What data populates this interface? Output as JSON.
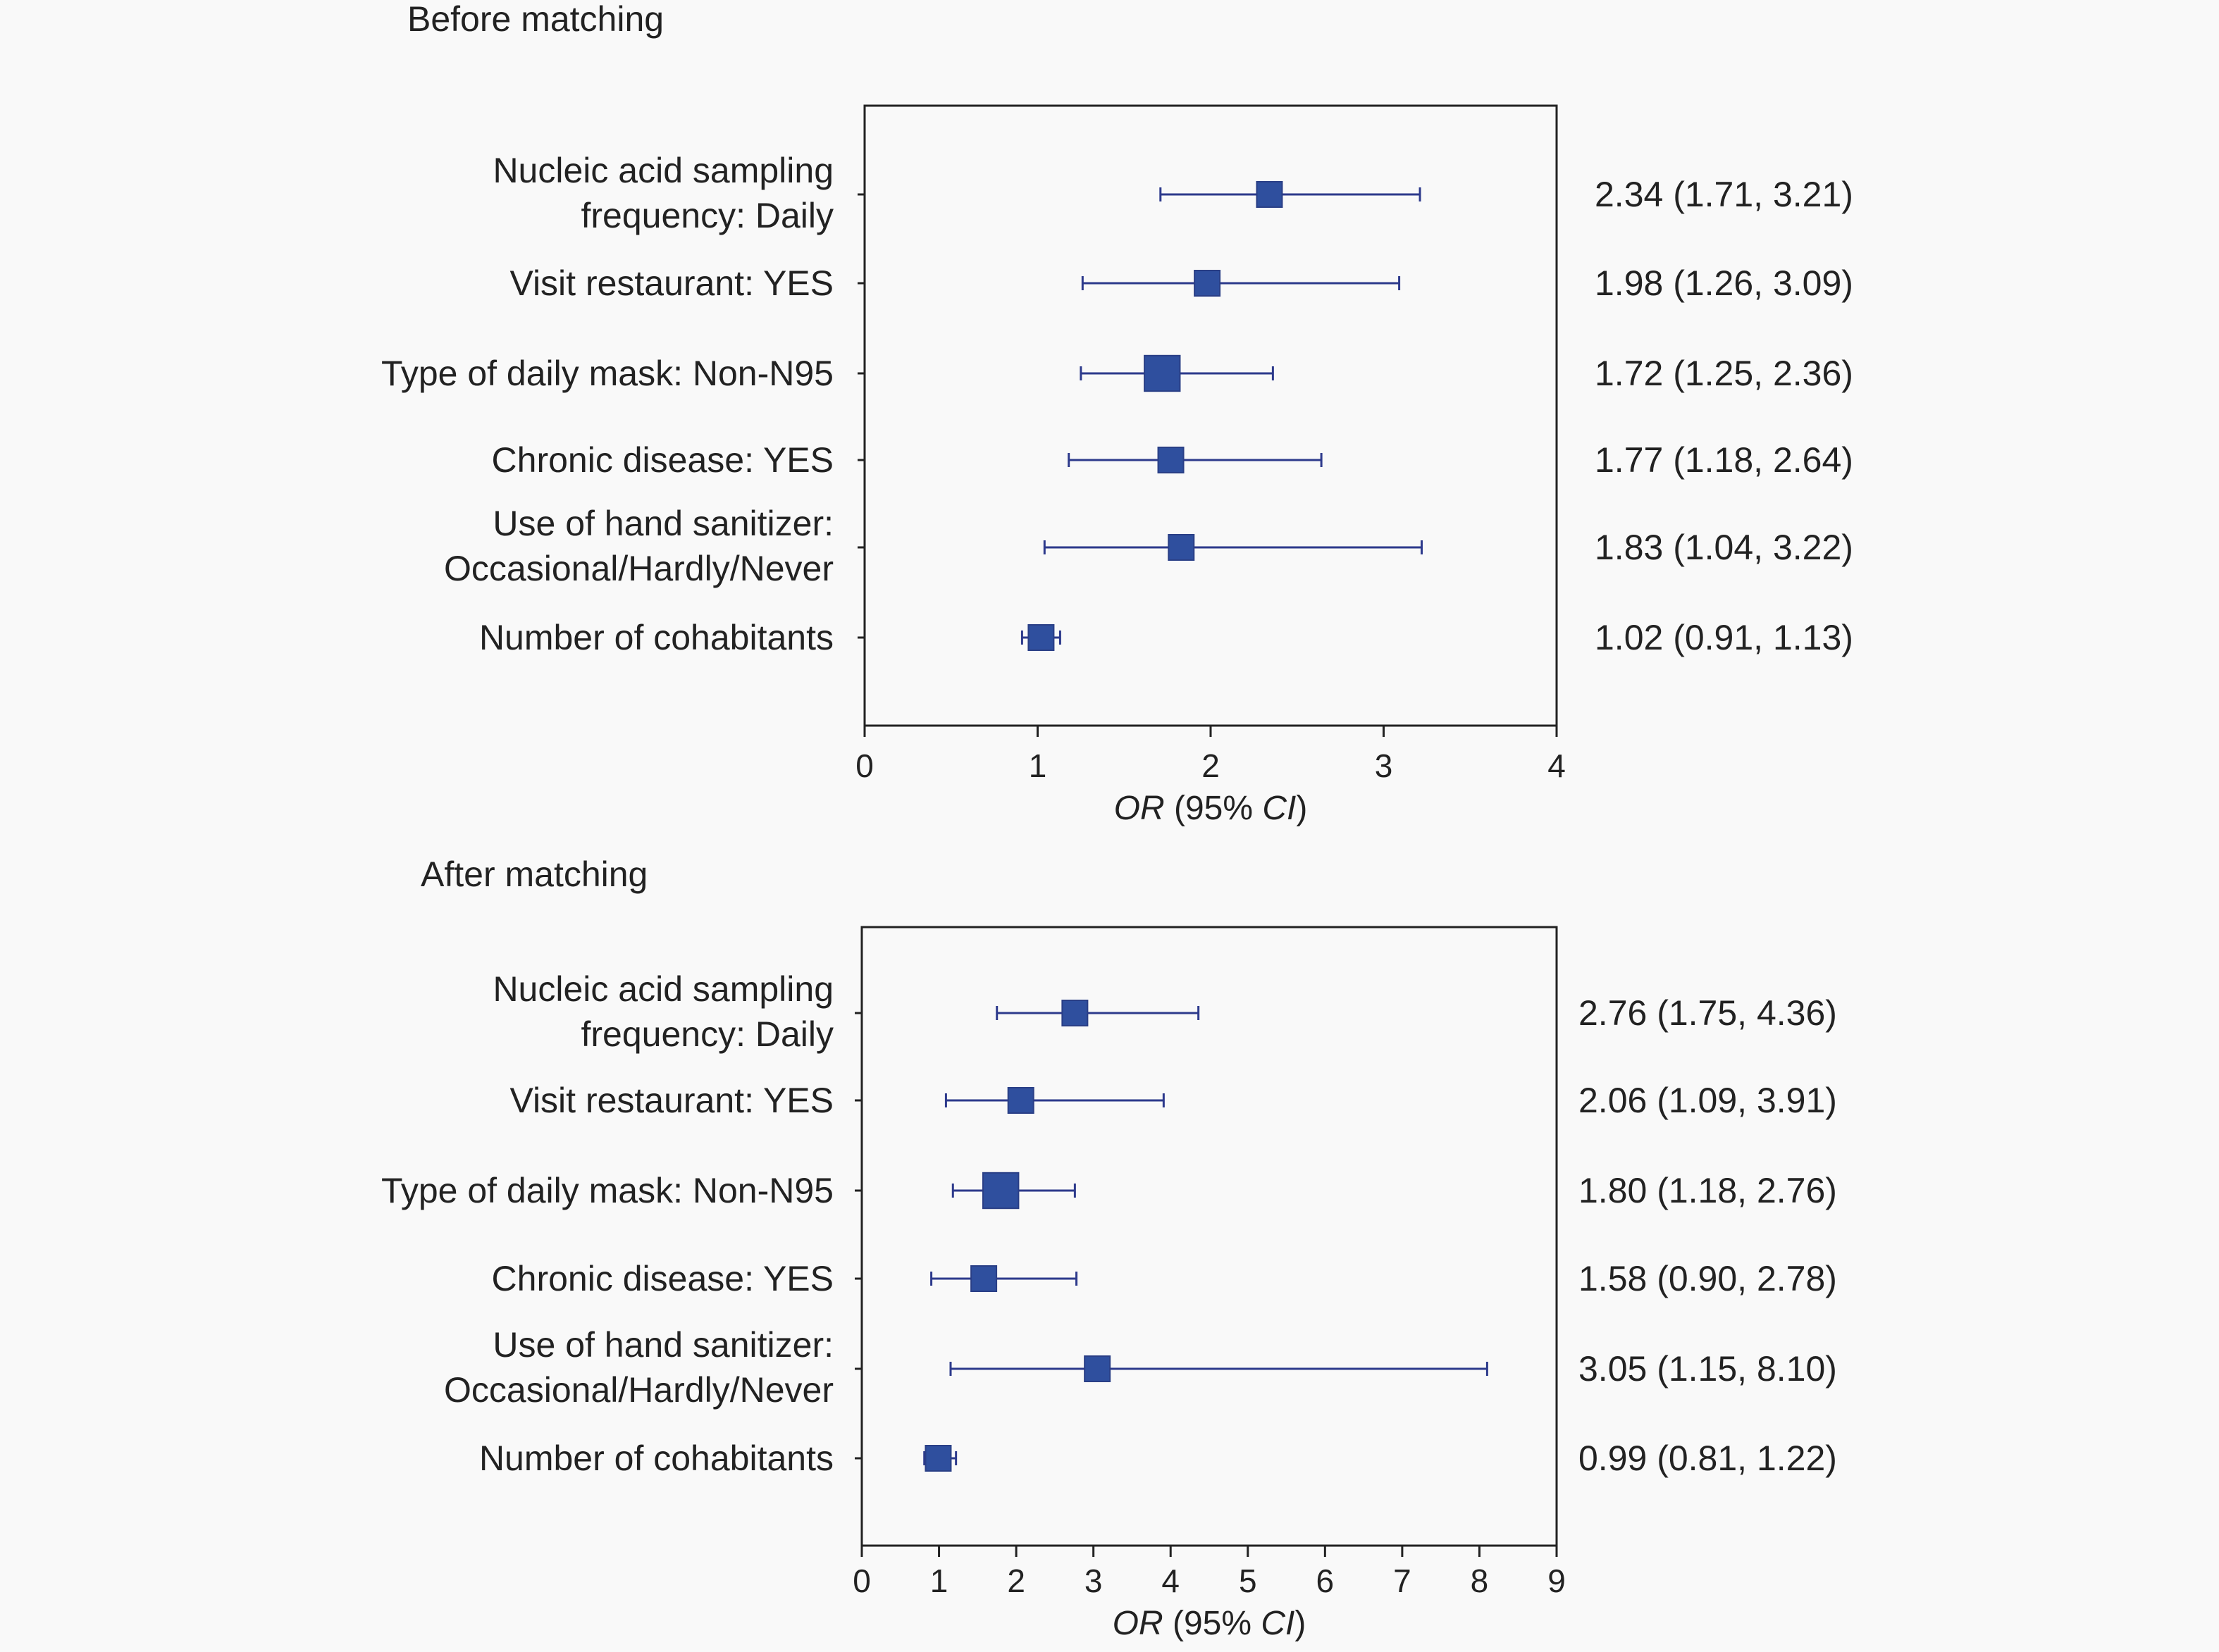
{
  "chart_data": [
    {
      "type": "forest",
      "title": "Before matching",
      "xlabel_parts": [
        {
          "text": "OR",
          "italic": true
        },
        {
          "text": " (95% ",
          "italic": false
        },
        {
          "text": "CI",
          "italic": true
        },
        {
          "text": ")",
          "italic": false
        }
      ],
      "xlim": [
        0,
        4
      ],
      "xticks": [
        0,
        1,
        2,
        3,
        4
      ],
      "rows": [
        {
          "label": [
            "Nucleic acid sampling",
            "frequency: Daily"
          ],
          "or": 2.34,
          "lo": 1.71,
          "hi": 3.21,
          "text": "2.34 (1.71, 3.21)",
          "weight": 1.0
        },
        {
          "label": [
            "Visit restaurant: YES"
          ],
          "or": 1.98,
          "lo": 1.26,
          "hi": 3.09,
          "text": "1.98 (1.26, 3.09)",
          "weight": 1.0
        },
        {
          "label": [
            "Type of daily mask: Non-N95"
          ],
          "or": 1.72,
          "lo": 1.25,
          "hi": 2.36,
          "text": "1.72 (1.25, 2.36)",
          "weight": 1.4
        },
        {
          "label": [
            "Chronic disease: YES"
          ],
          "or": 1.77,
          "lo": 1.18,
          "hi": 2.64,
          "text": "1.77 (1.18, 2.64)",
          "weight": 1.0
        },
        {
          "label": [
            "Use of hand sanitizer:",
            "Occasional/Hardly/Never"
          ],
          "or": 1.83,
          "lo": 1.04,
          "hi": 3.22,
          "text": "1.83 (1.04, 3.22)",
          "weight": 1.0
        },
        {
          "label": [
            "Number of cohabitants"
          ],
          "or": 1.02,
          "lo": 0.91,
          "hi": 1.13,
          "text": "1.02 (0.91, 1.13)",
          "weight": 1.0
        }
      ],
      "colors": {
        "marker": "#2f4f9e",
        "ci": "#2d3a8c"
      }
    },
    {
      "type": "forest",
      "title": "After matching",
      "xlabel_parts": [
        {
          "text": "OR",
          "italic": true
        },
        {
          "text": " (95% ",
          "italic": false
        },
        {
          "text": "CI",
          "italic": true
        },
        {
          "text": ")",
          "italic": false
        }
      ],
      "xlim": [
        0,
        9
      ],
      "xticks": [
        0,
        1,
        2,
        3,
        4,
        5,
        6,
        7,
        8,
        9
      ],
      "rows": [
        {
          "label": [
            "Nucleic acid sampling",
            "frequency: Daily"
          ],
          "or": 2.76,
          "lo": 1.75,
          "hi": 4.36,
          "text": "2.76 (1.75, 4.36)",
          "weight": 1.0
        },
        {
          "label": [
            "Visit restaurant: YES"
          ],
          "or": 2.06,
          "lo": 1.09,
          "hi": 3.91,
          "text": "2.06 (1.09, 3.91)",
          "weight": 1.0
        },
        {
          "label": [
            "Type of daily mask: Non-N95"
          ],
          "or": 1.8,
          "lo": 1.18,
          "hi": 2.76,
          "text": "1.80 (1.18, 2.76)",
          "weight": 1.4
        },
        {
          "label": [
            "Chronic disease: YES"
          ],
          "or": 1.58,
          "lo": 0.9,
          "hi": 2.78,
          "text": "1.58 (0.90, 2.78)",
          "weight": 1.0
        },
        {
          "label": [
            "Use of hand sanitizer:",
            "Occasional/Hardly/Never"
          ],
          "or": 3.05,
          "lo": 1.15,
          "hi": 8.1,
          "text": "3.05 (1.15, 8.10)",
          "weight": 1.0
        },
        {
          "label": [
            "Number of cohabitants"
          ],
          "or": 0.99,
          "lo": 0.81,
          "hi": 1.22,
          "text": "0.99 (0.81, 1.22)",
          "weight": 1.0
        }
      ],
      "colors": {
        "marker": "#2f4f9e",
        "ci": "#2d3a8c"
      }
    }
  ]
}
